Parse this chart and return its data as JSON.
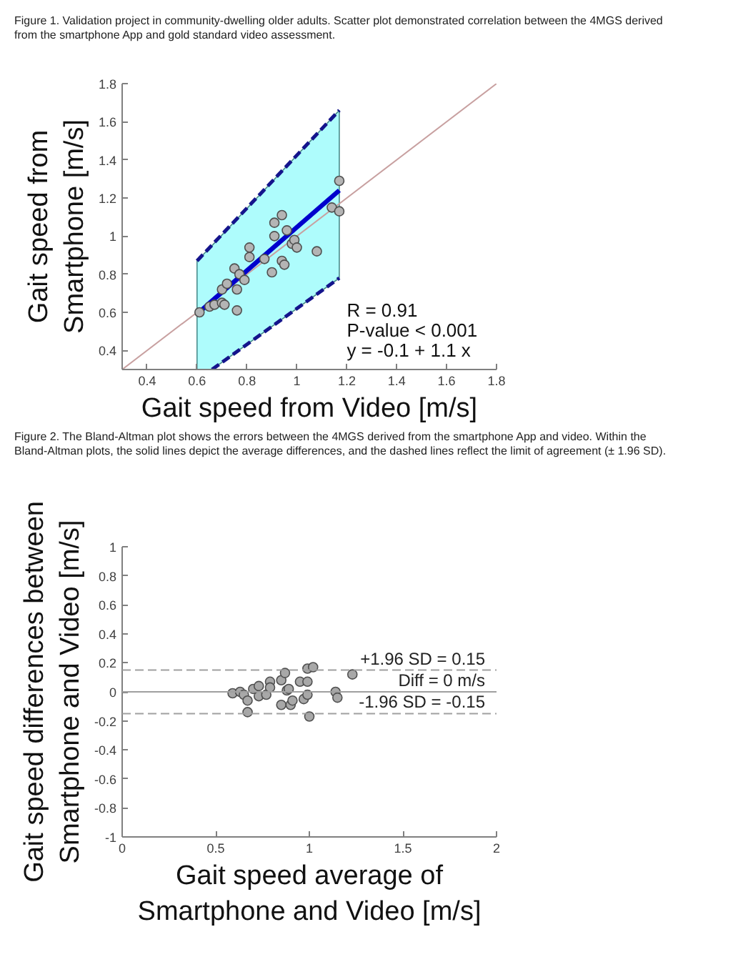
{
  "chart_data": [
    {
      "type": "scatter",
      "title": "Figure 1. Validation project in community-dwelling older adults. Scatter plot demonstrated correlation between the 4MGS derived from the smartphone App and gold standard video assessment.",
      "xlabel": "Gait speed from Video [m/s]",
      "ylabel": "Gait speed from Smartphone [m/s]",
      "xlim": [
        0.3,
        1.8
      ],
      "ylim": [
        0.3,
        1.8
      ],
      "xticks": [
        0.4,
        0.6,
        0.8,
        1,
        1.2,
        1.4,
        1.6,
        1.8
      ],
      "yticks": [
        0.4,
        0.6,
        0.8,
        1,
        1.2,
        1.4,
        1.6,
        1.8
      ],
      "annotations": [
        "R = 0.91",
        "P-value < 0.001",
        "y = -0.1 + 1.1 x"
      ],
      "series": [
        {
          "type": "line",
          "color": "#c8a0a0",
          "x": [
            0.3,
            1.8
          ],
          "values": [
            0.3,
            1.8
          ]
        },
        {
          "type": "line",
          "color": "#0000cd",
          "x": [
            0.6,
            0.66,
            1.17
          ],
          "values": [
            0.59,
            0.66,
            1.24
          ],
          "lower": [
            0.3,
            0.3,
            0.78
          ],
          "upper": [
            0.87,
            0.95,
            1.66
          ]
        },
        {
          "type": "line",
          "line_style": "dashed",
          "color": "#14148c",
          "x": [
            0.6,
            1.17
          ],
          "values": [
            0.87,
            1.66
          ]
        },
        {
          "type": "line",
          "line_style": "dashed",
          "color": "#14148c",
          "x": [
            0.66,
            1.17
          ],
          "values": [
            0.3,
            0.78
          ]
        },
        {
          "marker": "circle",
          "color": "#b4b4b4",
          "x": [
            0.61,
            0.65,
            0.67,
            0.7,
            0.7,
            0.71,
            0.72,
            0.75,
            0.76,
            0.76,
            0.77,
            0.79,
            0.81,
            0.81,
            0.87,
            0.9,
            0.91,
            0.91,
            0.94,
            0.94,
            0.95,
            0.96,
            0.98,
            0.99,
            1.0,
            1.08,
            1.14,
            1.17,
            1.17
          ],
          "values": [
            0.6,
            0.63,
            0.64,
            0.72,
            0.65,
            0.64,
            0.75,
            0.83,
            0.72,
            0.61,
            0.8,
            0.77,
            0.94,
            0.89,
            0.88,
            0.81,
            1.0,
            1.07,
            1.11,
            0.87,
            0.85,
            1.03,
            0.96,
            0.98,
            0.94,
            0.92,
            1.15,
            1.29,
            1.13
          ]
        }
      ]
    },
    {
      "type": "scatter",
      "title": "Figure 2. The Bland-Altman plot shows the errors between the 4MGS derived from the smartphone App and video. Within the Bland-Altman plots, the solid lines depict the average differences, and the dashed lines reflect the limit of agreement (± 1.96 SD).",
      "xlabel": "Gait speed average of Smartphone and Video [m/s]",
      "ylabel": "Gait speed differences between Smartphone and Video [m/s]",
      "xlim": [
        0,
        2
      ],
      "ylim": [
        -1,
        1
      ],
      "xticks": [
        0,
        0.5,
        1,
        1.5,
        2
      ],
      "yticks": [
        -1,
        -0.8,
        -0.6,
        -0.4,
        -0.2,
        0,
        0.2,
        0.4,
        0.6,
        0.8,
        1
      ],
      "ref_lines": [
        {
          "axis": "y",
          "value": 0.15,
          "label": "+1.96 SD = 0.15",
          "color": "#a0a0a0",
          "line_style": "dashed"
        },
        {
          "axis": "y",
          "value": 0,
          "label": "Diff = 0 m/s",
          "color": "#a0a0a0"
        },
        {
          "axis": "y",
          "value": -0.15,
          "label": "-1.96 SD = -0.15",
          "color": "#a0a0a0",
          "line_style": "dashed"
        }
      ],
      "series": [
        {
          "marker": "circle",
          "color": "#a8a8a8",
          "x": [
            0.59,
            0.63,
            0.65,
            0.67,
            0.67,
            0.7,
            0.73,
            0.73,
            0.77,
            0.79,
            0.79,
            0.85,
            0.85,
            0.87,
            0.88,
            0.89,
            0.9,
            0.91,
            0.95,
            0.97,
            0.99,
            0.99,
            0.99,
            1.02,
            1.0,
            1.14,
            1.15,
            1.23
          ],
          "values": [
            -0.01,
            0.0,
            -0.02,
            -0.06,
            -0.14,
            0.02,
            0.04,
            -0.03,
            -0.02,
            0.07,
            0.03,
            0.08,
            -0.09,
            0.13,
            0.01,
            0.02,
            -0.09,
            -0.06,
            0.07,
            -0.05,
            0.16,
            0.07,
            -0.02,
            0.17,
            -0.17,
            0.0,
            -0.04,
            0.12
          ]
        }
      ]
    }
  ]
}
